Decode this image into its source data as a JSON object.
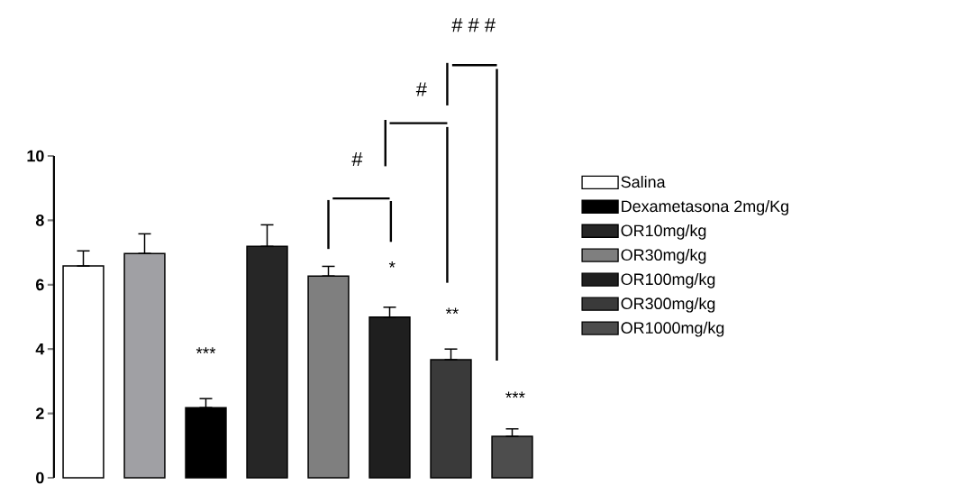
{
  "chart_data": {
    "type": "bar",
    "stacked": true,
    "categories": [
      null,
      null,
      null,
      null,
      null,
      null,
      null,
      null
    ],
    "series": [
      {
        "name": "Salina",
        "color": "#ffffff",
        "values": [
          6.58,
          0,
          0,
          0,
          0,
          0,
          0,
          0
        ],
        "errors": [
          [
            6.58,
            7.05
          ],
          null,
          null,
          null,
          null,
          null,
          null,
          null
        ]
      },
      {
        "color": "#a0a0a4",
        "values": [
          0,
          6.97,
          0,
          0,
          0,
          0,
          0,
          0
        ],
        "errors": [
          null,
          [
            6.97,
            7.58
          ],
          null,
          null,
          null,
          null,
          null,
          null
        ]
      },
      {
        "name": "Dexametasona 2mg/Kg",
        "color": "#000000",
        "values": [
          0,
          0,
          2.18,
          0,
          0,
          0,
          0,
          0
        ],
        "errors": [
          null,
          null,
          [
            2.18,
            2.46
          ],
          null,
          null,
          null,
          null,
          null
        ]
      },
      {
        "name": "OR10mg/kg",
        "color": "#262626",
        "values": [
          0,
          0,
          0,
          7.19,
          0,
          0,
          0,
          0
        ],
        "errors": [
          null,
          null,
          null,
          [
            7.19,
            7.86
          ],
          null,
          null,
          null,
          null
        ]
      },
      {
        "name": "OR30mg/kg",
        "color": "#7f7f7f",
        "values": [
          0,
          0,
          0,
          0,
          6.27,
          0,
          0,
          0
        ],
        "errors": [
          null,
          null,
          null,
          null,
          [
            6.27,
            6.57
          ],
          null,
          null,
          null
        ]
      },
      {
        "name": "OR100mg/kg",
        "color": "#1f1f1f",
        "values": [
          0,
          0,
          0,
          0,
          0,
          4.99,
          0,
          0
        ],
        "errors": [
          null,
          null,
          null,
          null,
          null,
          [
            4.99,
            5.3
          ],
          null,
          null
        ]
      },
      {
        "name": "OR300mg/kg",
        "color": "#3a3a3a",
        "values": [
          0,
          0,
          0,
          0,
          0,
          0,
          3.67,
          0
        ],
        "errors": [
          null,
          null,
          null,
          null,
          null,
          null,
          [
            3.67,
            4.0
          ],
          null
        ]
      },
      {
        "name": "OR1000mg/kg",
        "color": "#4d4d4d",
        "values": [
          0,
          0,
          0,
          0,
          0,
          0,
          0,
          1.29
        ],
        "errors": [
          null,
          null,
          null,
          null,
          null,
          null,
          null,
          [
            1.29,
            1.52
          ]
        ]
      }
    ],
    "ylim": [
      0,
      10
    ],
    "yticks": [
      0,
      2,
      4,
      6,
      8,
      10
    ],
    "legend": "right",
    "annotations": [
      "***",
      "*",
      "**",
      "***",
      "#",
      "#",
      "# # #"
    ]
  }
}
